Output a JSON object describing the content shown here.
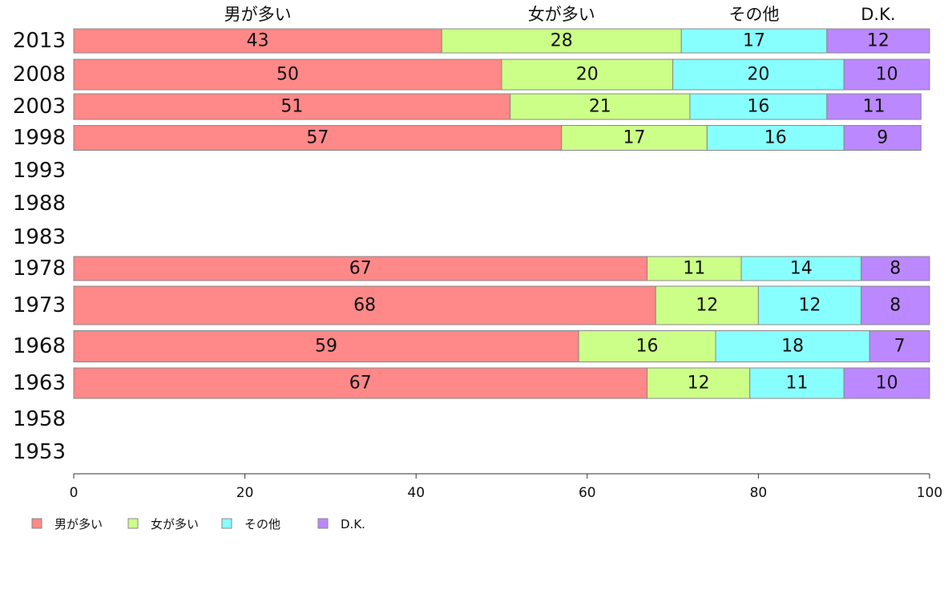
{
  "chart_data": {
    "type": "bar",
    "orientation": "horizontal",
    "stacked": true,
    "categories": [
      "2013",
      "2008",
      "2003",
      "1998",
      "1993",
      "1988",
      "1983",
      "1978",
      "1973",
      "1968",
      "1963",
      "1958",
      "1953"
    ],
    "series": [
      {
        "name": "男が多い",
        "color": "#ff8888",
        "values": [
          43,
          50,
          51,
          57,
          null,
          null,
          null,
          67,
          68,
          59,
          67,
          null,
          null
        ]
      },
      {
        "name": "女が多い",
        "color": "#ccff88",
        "values": [
          28,
          20,
          21,
          17,
          null,
          null,
          null,
          11,
          12,
          16,
          12,
          null,
          null
        ]
      },
      {
        "name": "その他",
        "color": "#88ffff",
        "values": [
          17,
          20,
          16,
          16,
          null,
          null,
          null,
          14,
          12,
          18,
          11,
          null,
          null
        ]
      },
      {
        "name": "D.K.",
        "color": "#bb88ff",
        "values": [
          12,
          10,
          11,
          9,
          null,
          null,
          null,
          8,
          8,
          7,
          10,
          null,
          null
        ]
      }
    ],
    "xlim": [
      0,
      100
    ],
    "xticks": [
      0,
      20,
      40,
      60,
      80,
      100
    ],
    "header_labels": [
      "男が多い",
      "女が多い",
      "その他",
      "D.K."
    ],
    "legend": {
      "placement": "bottom-left",
      "entries": [
        "男が多い",
        "女が多い",
        "その他",
        "D.K."
      ]
    },
    "grid": false,
    "title": "",
    "xlabel": "",
    "ylabel": ""
  }
}
